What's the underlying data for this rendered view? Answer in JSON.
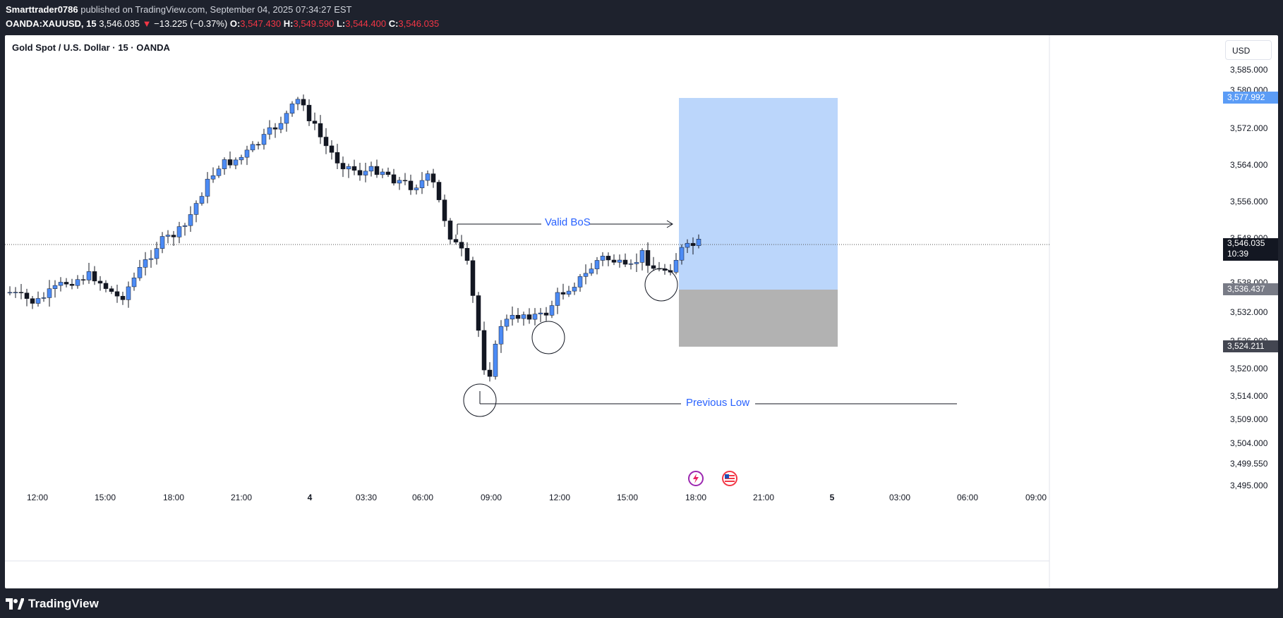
{
  "header": {
    "author": "Smarttrader0786",
    "published_text": " published on TradingView.com, September 04, 2025 07:34:27 EST",
    "symbol": "OANDA:XAUUSD, 15",
    "last": "3,546.035",
    "change": "−13.225 (−0.37%)",
    "open_label": "O:",
    "open": "3,547.430",
    "high_label": "H:",
    "high": "3,549.590",
    "low_label": "L:",
    "low": "3,544.400",
    "close_label": "C:",
    "close": "3,546.035"
  },
  "chart": {
    "title": "Gold Spot / U.S. Dollar · 15 · OANDA",
    "currency_button": "USD",
    "y_ticks": [
      "3,585.000",
      "3,580.000",
      "3,572.000",
      "3,564.000",
      "3,556.000",
      "3,548.000",
      "3,538.000",
      "3,532.000",
      "3,526.000",
      "3,520.000",
      "3,514.000",
      "3,509.000",
      "3,504.000",
      "3,499.550",
      "3,495.000"
    ],
    "x_ticks": [
      "12:00",
      "15:00",
      "18:00",
      "21:00",
      "4",
      "03:30",
      "06:00",
      "09:00",
      "12:00",
      "15:00",
      "18:00",
      "21:00",
      "5",
      "03:00",
      "06:00",
      "09:00"
    ],
    "price_tags": {
      "target": "3,577.992",
      "current": "3,546.035",
      "countdown": "10:39",
      "entry": "3,536.437",
      "stop": "3,524.211"
    },
    "annotations": {
      "bos": "Valid BoS",
      "previous_low": "Previous Low"
    },
    "colors": {
      "bull": "#4c8bf5",
      "bear": "#131722",
      "target_zone": "#bbd6fb",
      "stop_zone": "#b2b2b2",
      "label_blue": "#2962ff"
    },
    "icons": [
      "lightning-event-icon",
      "us-flag-icon"
    ]
  },
  "footer": {
    "brand": "TradingView"
  }
}
